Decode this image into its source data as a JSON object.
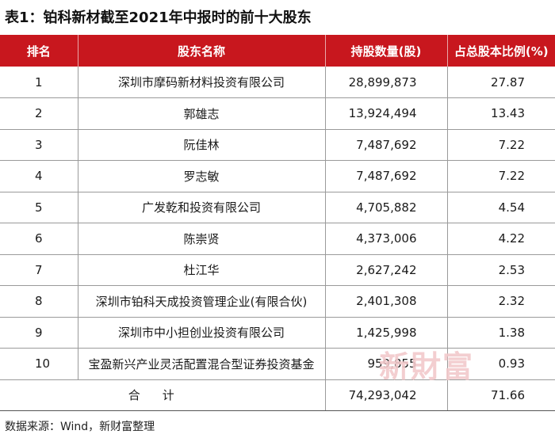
{
  "title": "表1：铂科新材截至2021年中报时的前十大股东",
  "table": {
    "headers": [
      "排名",
      "股东名称",
      "持股数量(股)",
      "占总股本比例(%)"
    ],
    "rows": [
      {
        "rank": "1",
        "name": "深圳市摩码新材料投资有限公司",
        "shares": "28,899,873",
        "pct": "27.87"
      },
      {
        "rank": "2",
        "name": "郭雄志",
        "shares": "13,924,494",
        "pct": "13.43"
      },
      {
        "rank": "3",
        "name": "阮佳林",
        "shares": "7,487,692",
        "pct": "7.22"
      },
      {
        "rank": "4",
        "name": "罗志敏",
        "shares": "7,487,692",
        "pct": "7.22"
      },
      {
        "rank": "5",
        "name": "广发乾和投资有限公司",
        "shares": "4,705,882",
        "pct": "4.54"
      },
      {
        "rank": "6",
        "name": "陈崇贤",
        "shares": "4,373,006",
        "pct": "4.22"
      },
      {
        "rank": "7",
        "name": "杜江华",
        "shares": "2,627,242",
        "pct": "2.53"
      },
      {
        "rank": "8",
        "name": "深圳市铂科天成投资管理企业(有限合伙)",
        "shares": "2,401,308",
        "pct": "2.32"
      },
      {
        "rank": "9",
        "name": "深圳市中小担创业投资有限公司",
        "shares": "1,425,998",
        "pct": "1.38"
      },
      {
        "rank": "10",
        "name": "宝盈新兴产业灵活配置混合型证券投资基金",
        "shares": "959,855",
        "pct": "0.93"
      }
    ],
    "total": {
      "label": "合计",
      "shares": "74,293,042",
      "pct": "71.66"
    }
  },
  "source": "数据来源：Wind，新财富整理",
  "watermark": "新財富",
  "colors": {
    "header_bg": "#c8171e",
    "watermark": "#f2c9cb"
  }
}
